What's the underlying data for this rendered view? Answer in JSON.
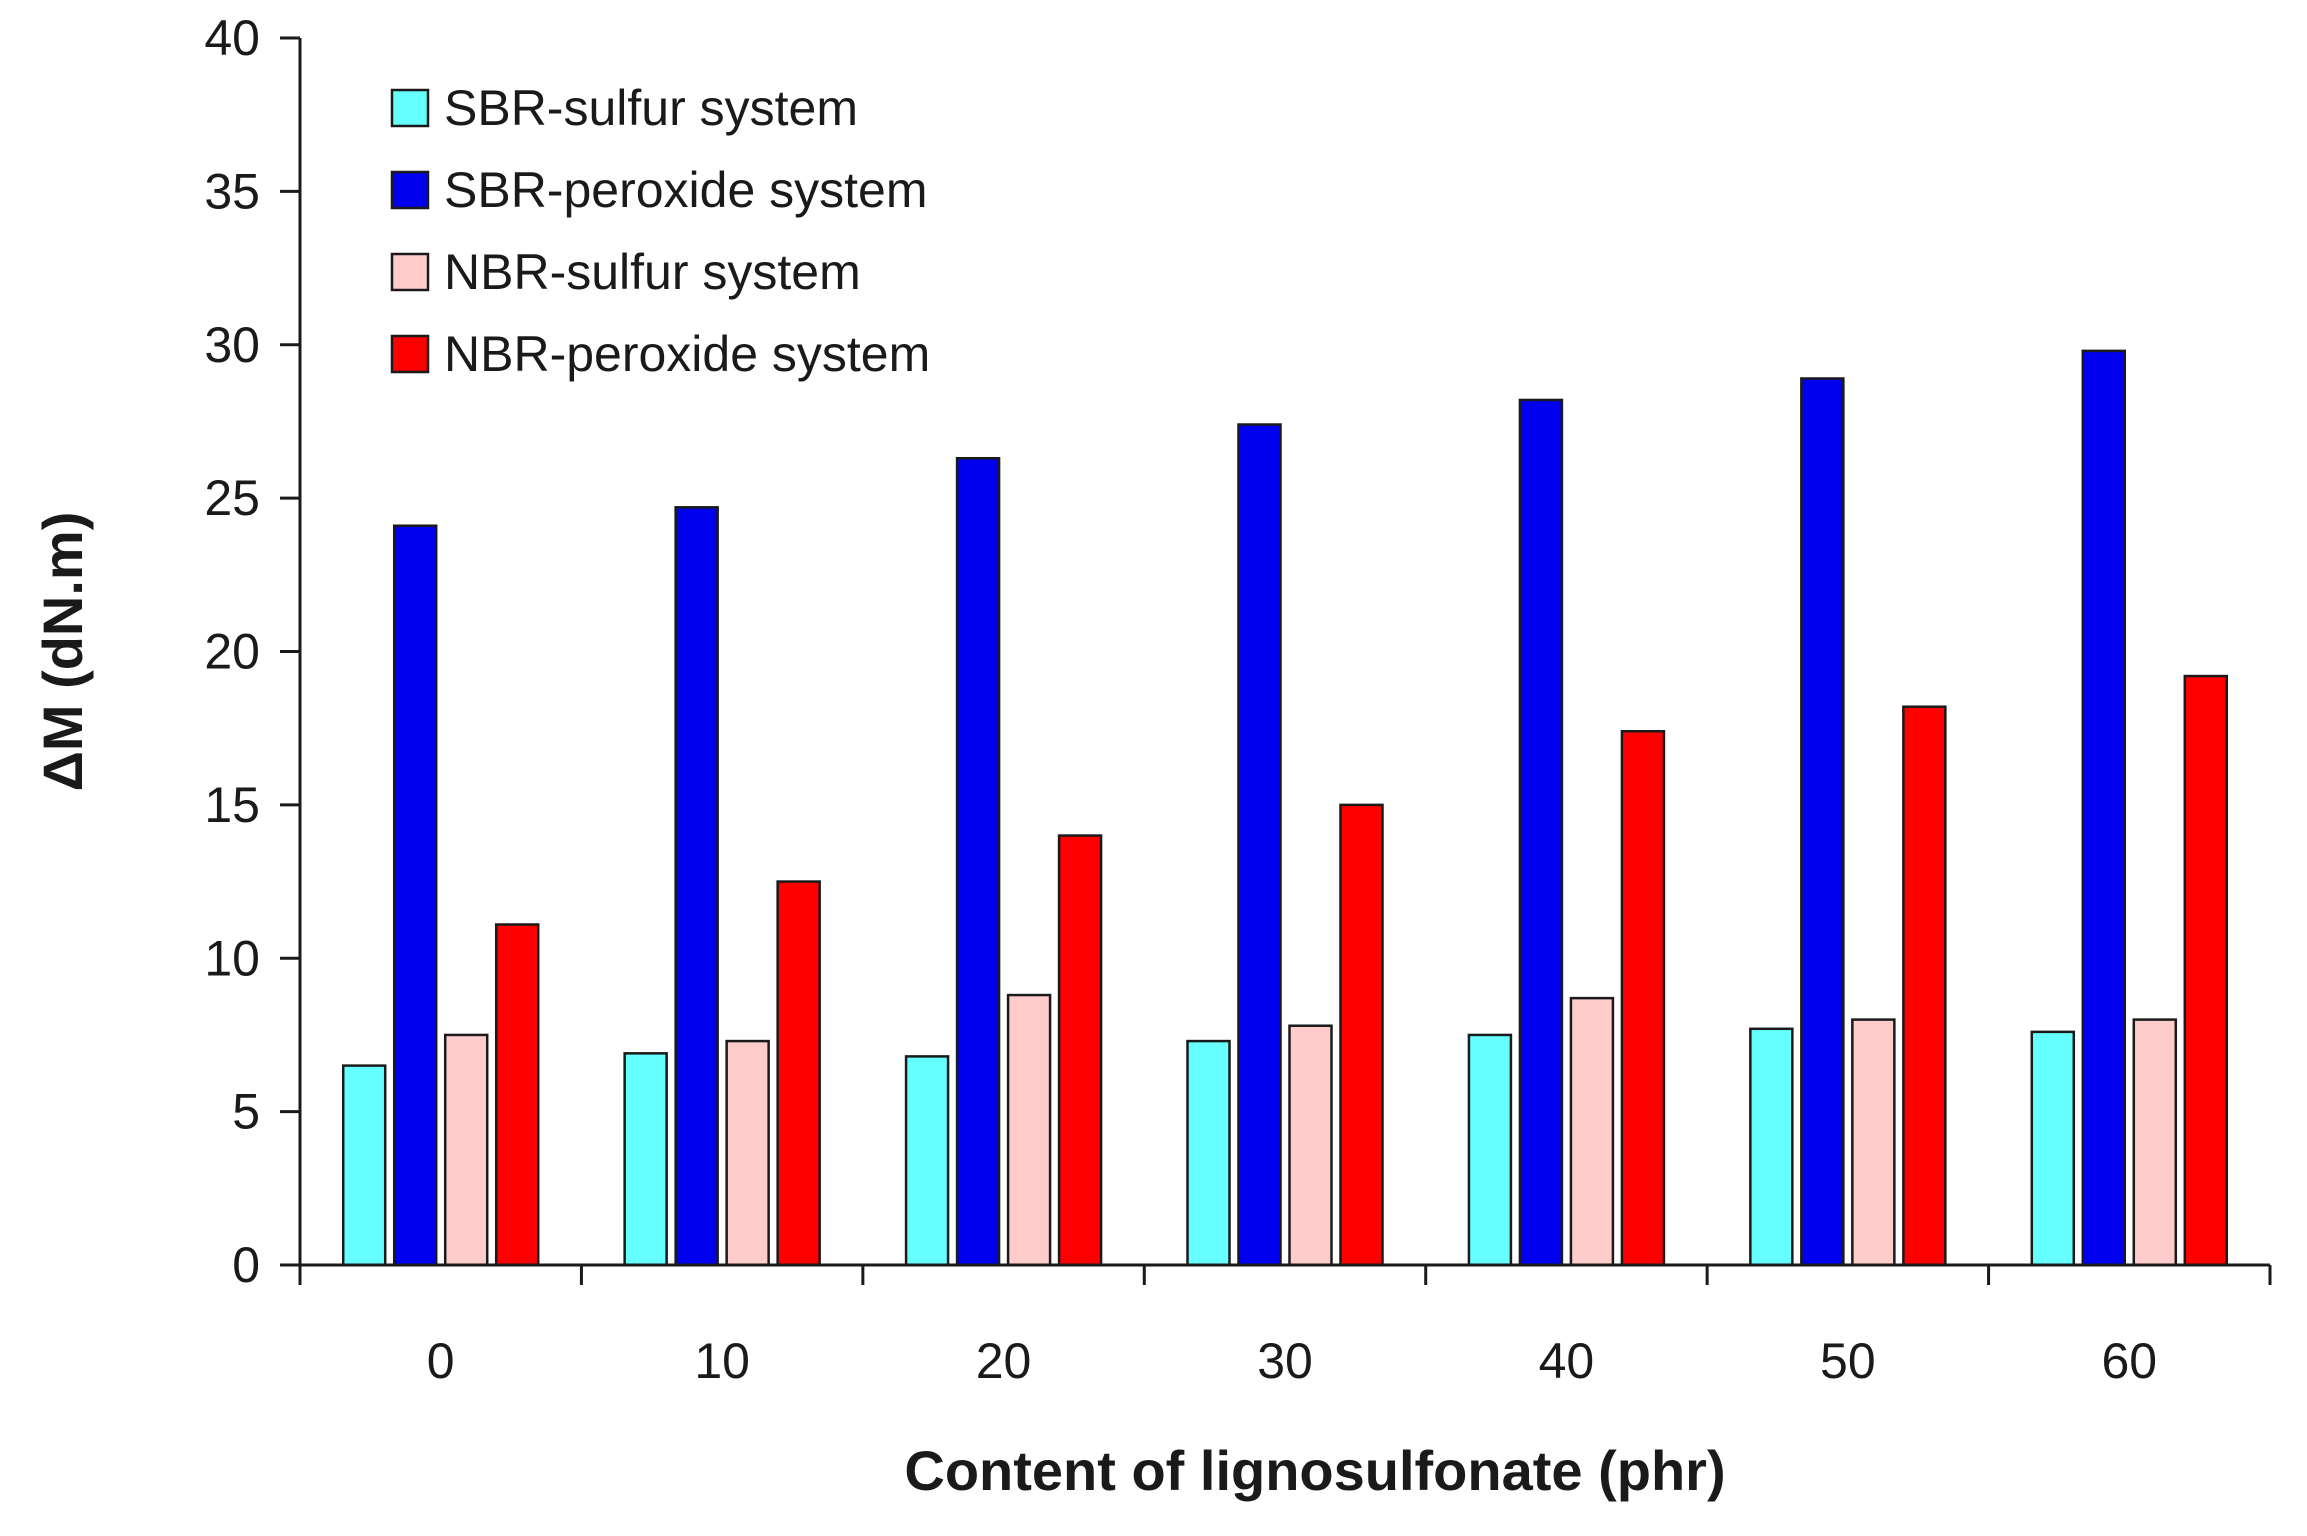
{
  "chart_data": {
    "type": "bar",
    "title": "",
    "xlabel": "Content of lignosulfonate (phr)",
    "ylabel": "ΔM (dN.m)",
    "categories": [
      "0",
      "10",
      "20",
      "30",
      "40",
      "50",
      "60"
    ],
    "ylim": [
      0,
      40
    ],
    "yticks": [
      0,
      5,
      10,
      15,
      20,
      25,
      30,
      35,
      40
    ],
    "grid": false,
    "legend_position": "top-left",
    "series": [
      {
        "name": "SBR-sulfur system",
        "color": "#66ffff",
        "values": [
          6.5,
          6.9,
          6.8,
          7.3,
          7.5,
          7.7,
          7.6
        ]
      },
      {
        "name": "SBR-peroxide system",
        "color": "#0000ee",
        "values": [
          24.1,
          24.7,
          26.3,
          27.4,
          28.2,
          28.9,
          29.8
        ]
      },
      {
        "name": "NBR-sulfur system",
        "color": "#ffcccc",
        "values": [
          7.5,
          7.3,
          8.8,
          7.8,
          8.7,
          8.0,
          8.0
        ]
      },
      {
        "name": "NBR-peroxide system",
        "color": "#ff0000",
        "values": [
          11.1,
          12.5,
          14.0,
          15.0,
          17.4,
          18.2,
          19.2
        ]
      }
    ]
  }
}
